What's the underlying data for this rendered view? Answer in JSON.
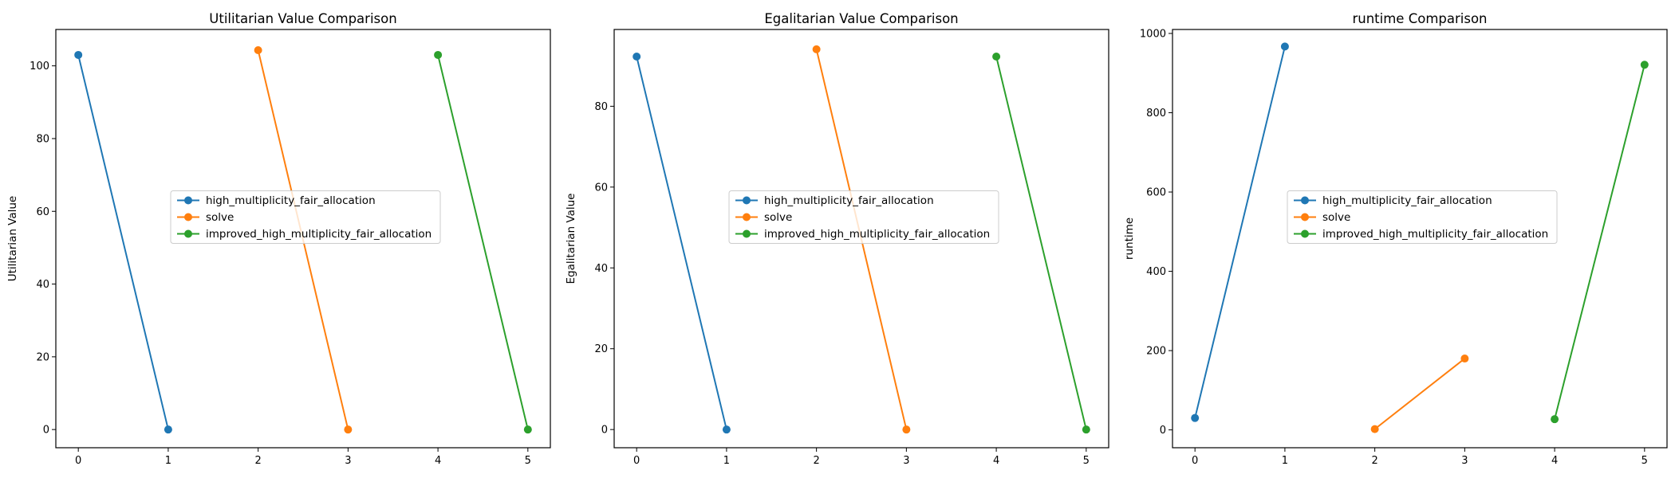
{
  "chart_data": [
    {
      "type": "line",
      "title": "Utilitarian Value Comparison",
      "xlabel": "",
      "ylabel": "Utilitarian Value",
      "xlim": [
        -0.25,
        5.25
      ],
      "ylim": [
        -5,
        110
      ],
      "xticks": [
        0,
        1,
        2,
        3,
        4,
        5
      ],
      "yticks": [
        0,
        20,
        40,
        60,
        80,
        100
      ],
      "grid": false,
      "legend_position": "center",
      "series": [
        {
          "name": "high_multiplicity_fair_allocation",
          "color": "#1f77b4",
          "x": [
            0,
            1
          ],
          "y": [
            103,
            0
          ]
        },
        {
          "name": "solve",
          "color": "#ff7f0e",
          "x": [
            2,
            3
          ],
          "y": [
            104.3,
            0
          ]
        },
        {
          "name": "improved_high_multiplicity_fair_allocation",
          "color": "#2ca02c",
          "x": [
            4,
            5
          ],
          "y": [
            103,
            0
          ]
        }
      ]
    },
    {
      "type": "line",
      "title": "Egalitarian Value Comparison",
      "xlabel": "",
      "ylabel": "Egalitarian Value",
      "xlim": [
        -0.25,
        5.25
      ],
      "ylim": [
        -4.5,
        99
      ],
      "xticks": [
        0,
        1,
        2,
        3,
        4,
        5
      ],
      "yticks": [
        0,
        20,
        40,
        60,
        80
      ],
      "grid": false,
      "legend_position": "center",
      "series": [
        {
          "name": "high_multiplicity_fair_allocation",
          "color": "#1f77b4",
          "x": [
            0,
            1
          ],
          "y": [
            92.3,
            0
          ]
        },
        {
          "name": "solve",
          "color": "#ff7f0e",
          "x": [
            2,
            3
          ],
          "y": [
            94.1,
            0
          ]
        },
        {
          "name": "improved_high_multiplicity_fair_allocation",
          "color": "#2ca02c",
          "x": [
            4,
            5
          ],
          "y": [
            92.3,
            0
          ]
        }
      ]
    },
    {
      "type": "line",
      "title": "runtime Comparison",
      "xlabel": "",
      "ylabel": "runtime",
      "xlim": [
        -0.25,
        5.25
      ],
      "ylim": [
        -45,
        1010
      ],
      "xticks": [
        0,
        1,
        2,
        3,
        4,
        5
      ],
      "yticks": [
        0,
        200,
        400,
        600,
        800,
        1000
      ],
      "grid": false,
      "legend_position": "center",
      "series": [
        {
          "name": "high_multiplicity_fair_allocation",
          "color": "#1f77b4",
          "x": [
            0,
            1
          ],
          "y": [
            30,
            967
          ]
        },
        {
          "name": "solve",
          "color": "#ff7f0e",
          "x": [
            2,
            3
          ],
          "y": [
            2,
            180
          ]
        },
        {
          "name": "improved_high_multiplicity_fair_allocation",
          "color": "#2ca02c",
          "x": [
            4,
            5
          ],
          "y": [
            27,
            921
          ]
        }
      ]
    }
  ]
}
